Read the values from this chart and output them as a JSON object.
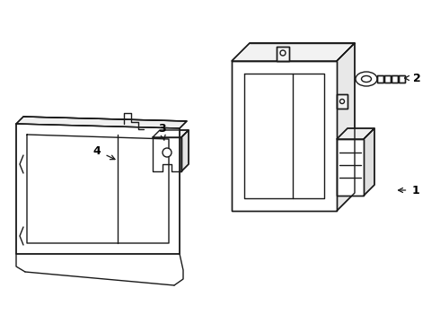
{
  "bg_color": "#ffffff",
  "line_color": "#1a1a1a",
  "line_width": 1.0,
  "label_color": "#000000",
  "label_fontsize": 9
}
